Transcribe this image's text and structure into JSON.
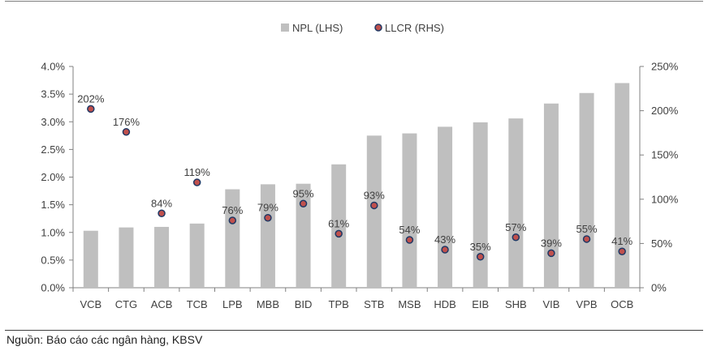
{
  "chart_data": {
    "type": "bar",
    "categories": [
      "VCB",
      "CTG",
      "ACB",
      "TCB",
      "LPB",
      "MBB",
      "BID",
      "TPB",
      "STB",
      "MSB",
      "HDB",
      "EIB",
      "SHB",
      "VIB",
      "VPB",
      "OCB"
    ],
    "series": [
      {
        "name": "NPL (LHS)",
        "type": "bar",
        "axis": "left",
        "values": [
          1.03,
          1.09,
          1.1,
          1.16,
          1.78,
          1.87,
          1.88,
          2.23,
          2.75,
          2.79,
          2.91,
          2.99,
          3.06,
          3.33,
          3.52,
          3.7
        ]
      },
      {
        "name": "LLCR (RHS)",
        "type": "scatter",
        "axis": "right",
        "values": [
          202,
          176,
          84,
          119,
          76,
          79,
          95,
          61,
          93,
          54,
          43,
          35,
          57,
          39,
          55,
          41
        ],
        "labels": [
          "202%",
          "176%",
          "84%",
          "119%",
          "76%",
          "79%",
          "95%",
          "61%",
          "93%",
          "54%",
          "43%",
          "35%",
          "57%",
          "39%",
          "55%",
          "41%"
        ]
      }
    ],
    "y_left": {
      "min": 0,
      "max": 4.0,
      "ticks": [
        0,
        0.5,
        1.0,
        1.5,
        2.0,
        2.5,
        3.0,
        3.5,
        4.0
      ],
      "tick_labels": [
        "0.0%",
        "0.5%",
        "1.0%",
        "1.5%",
        "2.0%",
        "2.5%",
        "3.0%",
        "3.5%",
        "4.0%"
      ]
    },
    "y_right": {
      "min": 0,
      "max": 250,
      "ticks": [
        0,
        50,
        100,
        150,
        200,
        250
      ],
      "tick_labels": [
        "0%",
        "50%",
        "100%",
        "150%",
        "200%",
        "250%"
      ]
    },
    "legend_position": "top-center",
    "grid": false,
    "colors": {
      "bar": "#bfbfbf",
      "marker_fill": "#c0504d",
      "marker_edge": "#1f3864",
      "axis": "#808080"
    }
  },
  "source": "Nguồn: Báo cáo các ngân hàng, KBSV"
}
